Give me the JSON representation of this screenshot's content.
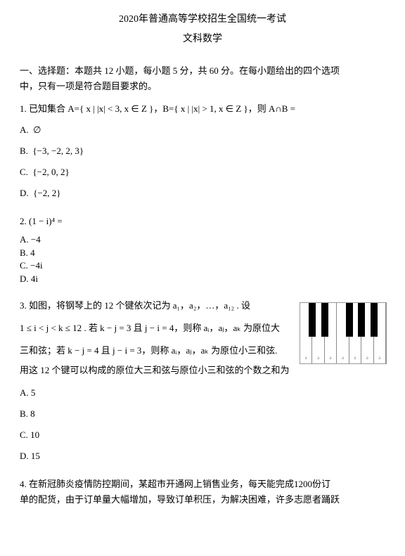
{
  "header": {
    "line1": "2020年普通高等学校招生全国统一考试",
    "line2": "文科数学"
  },
  "section1": {
    "intro1": "一、选择题：本题共 12 小题，每小题 5 分，共 60 分。在每小题给出的四个选项",
    "intro2": "中，只有一项是符合题目要求的。"
  },
  "q1": {
    "stem_pre": "1. 已知集合 A=",
    "setA": "{ x | |x| < 3, x ∈ Z }",
    "mid": "，B=",
    "setB": "{ x | |x| > 1, x ∈ Z }",
    "post": "，则 A∩B =",
    "opts": {
      "A": {
        "label": "A.",
        "val": "∅"
      },
      "B": {
        "label": "B.",
        "val": "{−3, −2, 2, 3}"
      },
      "C": {
        "label": "C.",
        "val": "{−2, 0, 2}"
      },
      "D": {
        "label": "D.",
        "val": "{−2, 2}"
      }
    }
  },
  "q2": {
    "stem": "2. (1 − i)⁴ =",
    "opts": {
      "A": "A. −4",
      "B": "B. 4",
      "C": "C. −4i",
      "D": "D. 4i"
    }
  },
  "q3": {
    "line1": "3. 如图，将钢琴上的 12 个键依次记为 a₁，a₂，…，a₁₂ . 设",
    "line2_pre": "1 ≤ i < j < k ≤ 12 . 若 k − j = 3 且 j − i = 4，则称 aᵢ，aⱼ，aₖ 为原位大",
    "line3": "三和弦；若 k − j = 4 且 j − i = 3，则称 aᵢ，aⱼ，aₖ 为原位小三和弦.",
    "line4": "用这 12 个键可以构成的原位大三和弦与原位小三和弦的个数之和为",
    "opts": {
      "A": "A. 5",
      "B": "B. 8",
      "C": "C. 10",
      "D": "D. 15"
    },
    "piano": {
      "white_keys": 7,
      "black_positions": [
        1,
        2,
        4,
        5,
        6
      ],
      "label": "a"
    }
  },
  "q4": {
    "line1": "4. 在新冠肺炎疫情防控期间，某超市开通网上销售业务，每天能完成1200份订",
    "line2": "单的配货，由于订单量大幅增加，导致订单积压，为解决困难，许多志愿者踊跃"
  },
  "colors": {
    "text": "#000000",
    "bg": "#ffffff",
    "piano_border": "#999999",
    "key_line": "#8a8a8a",
    "label_gray": "#888888"
  },
  "fonts": {
    "body_size_pt": 10,
    "title_size_pt": 11,
    "label_size_pt": 6
  }
}
